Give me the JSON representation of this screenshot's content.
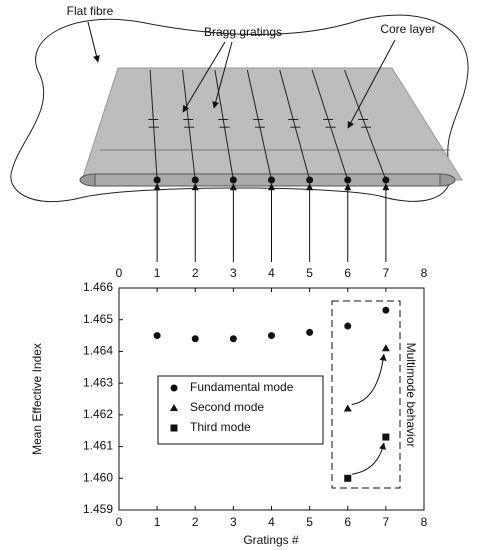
{
  "diagram": {
    "labels": [
      "Flat fibre",
      "Bragg gratings",
      "Core layer"
    ]
  },
  "chart_data": {
    "type": "scatter",
    "xlabel": "Gratings #",
    "ylabel": "Mean Effective Index",
    "annotations": [
      "Multimode behavior"
    ],
    "xlim": [
      0,
      8
    ],
    "xticks": [
      0,
      1,
      2,
      3,
      4,
      5,
      6,
      7,
      8
    ],
    "ylim": [
      1.459,
      1.466
    ],
    "yticks": [
      1.459,
      {
        "value": 1.46,
        "label": "1.460"
      },
      1.461,
      1.462,
      1.463,
      1.464,
      1.465,
      1.466
    ],
    "grid": false,
    "series": [
      {
        "name": "Fundamental mode",
        "color": "#111111",
        "marker": "circle",
        "x": [
          1,
          2,
          3,
          4,
          5,
          6,
          7
        ],
        "values": [
          1.4645,
          1.4644,
          1.4644,
          1.4645,
          1.4646,
          1.4648,
          1.4653
        ]
      },
      {
        "name": "Second mode",
        "color": "#111111",
        "marker": "triangle",
        "x": [
          6,
          7
        ],
        "values": [
          1.4622,
          1.4641
        ]
      },
      {
        "name": "Third mode",
        "color": "#111111",
        "marker": "square",
        "x": [
          6,
          7
        ],
        "values": [
          1.46,
          1.4613
        ]
      }
    ]
  }
}
